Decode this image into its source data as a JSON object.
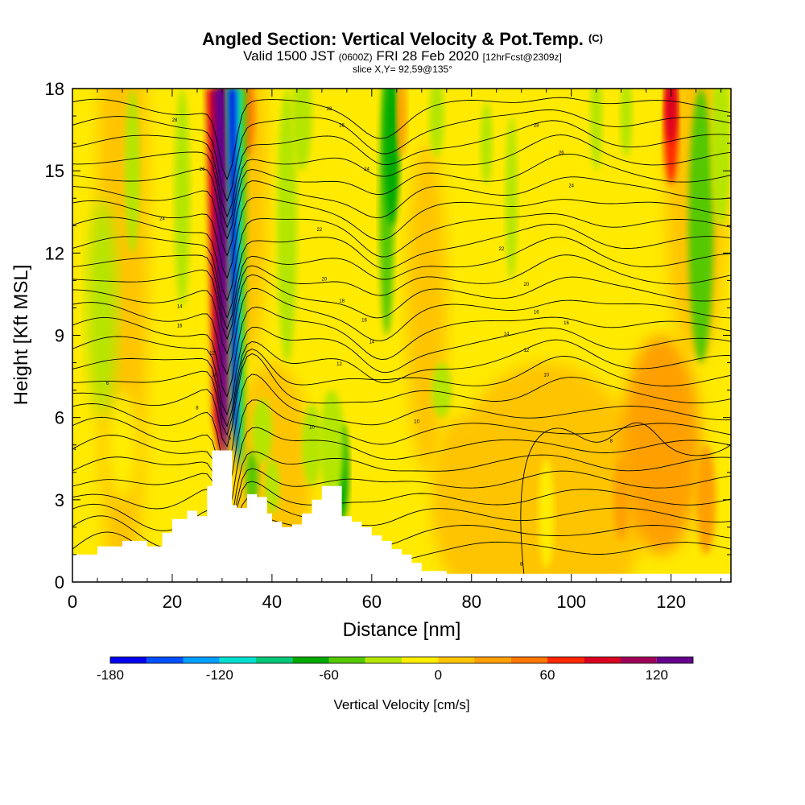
{
  "title": {
    "main": "Angled Section: Vertical Velocity & Pot.Temp.",
    "main_suffix": "(C)",
    "valid_prefix": "Valid 1500 JST",
    "valid_utc": "(0600Z)",
    "valid_date": "FRI 28 Feb 2020",
    "forecast": "[12hrFcst@2309z]",
    "slice": "slice X,Y= 92,59@135°"
  },
  "chart_data": {
    "type": "heatmap",
    "xlabel": "Distance [nm]",
    "ylabel": "Height [Kft MSL]",
    "xlim": [
      0,
      132
    ],
    "ylim": [
      0,
      18
    ],
    "x_ticks": [
      0,
      20,
      40,
      60,
      80,
      100,
      120
    ],
    "y_ticks": [
      0,
      3,
      6,
      9,
      12,
      15,
      18
    ],
    "grid": false,
    "colorbar": {
      "title": "Vertical Velocity [cm/s]",
      "range": [
        -180,
        140
      ],
      "step": 20,
      "tick_values": [
        -180,
        -120,
        -60,
        0,
        60,
        120
      ],
      "colors": [
        "#0000ee",
        "#0050ff",
        "#00a0ff",
        "#00e0d0",
        "#00c878",
        "#00aa00",
        "#55c800",
        "#b4e600",
        "#ffee00",
        "#ffc400",
        "#ffa000",
        "#ff7800",
        "#ff2800",
        "#dc0020",
        "#a0005a",
        "#64008c"
      ]
    },
    "terrain_profile": {
      "x": [
        0,
        5,
        10,
        15,
        18,
        20,
        23,
        25,
        27,
        28,
        30,
        32,
        33,
        35,
        37,
        39,
        40,
        42,
        44,
        46,
        48,
        50,
        52,
        54,
        56,
        58,
        60,
        62,
        64,
        66,
        68,
        70,
        75,
        132
      ],
      "height": [
        1.0,
        1.3,
        1.5,
        1.3,
        1.8,
        2.3,
        2.6,
        2.4,
        3.5,
        4.8,
        4.8,
        2.8,
        2.7,
        3.2,
        3.1,
        2.5,
        2.2,
        2.0,
        2.1,
        2.5,
        3.0,
        3.5,
        3.5,
        2.4,
        2.2,
        2.0,
        1.7,
        1.5,
        1.2,
        1.0,
        0.7,
        0.4,
        0.3,
        0.3
      ]
    },
    "theta_contour_labels": [
      {
        "x": 0.5,
        "y": 4.8,
        "text": "4"
      },
      {
        "x": 7,
        "y": 7.2,
        "text": "6"
      },
      {
        "x": 25,
        "y": 6.3,
        "text": "8"
      },
      {
        "x": 28.5,
        "y": 7.5,
        "text": "10"
      },
      {
        "x": 28,
        "y": 8.3,
        "text": "12"
      },
      {
        "x": 21.5,
        "y": 10.0,
        "text": "14"
      },
      {
        "x": 21.5,
        "y": 9.3,
        "text": "16"
      },
      {
        "x": 18,
        "y": 13.2,
        "text": "24"
      },
      {
        "x": 26,
        "y": 15.0,
        "text": "26"
      },
      {
        "x": 20.5,
        "y": 16.8,
        "text": "28"
      },
      {
        "x": 31.5,
        "y": 5.2,
        "text": "5"
      },
      {
        "x": 48,
        "y": 5.6,
        "text": "10"
      },
      {
        "x": 53.5,
        "y": 7.9,
        "text": "12"
      },
      {
        "x": 60,
        "y": 8.7,
        "text": "14"
      },
      {
        "x": 58.5,
        "y": 9.5,
        "text": "16"
      },
      {
        "x": 54,
        "y": 10.2,
        "text": "18"
      },
      {
        "x": 50.5,
        "y": 11.0,
        "text": "20"
      },
      {
        "x": 49.5,
        "y": 12.8,
        "text": "22"
      },
      {
        "x": 59,
        "y": 15.0,
        "text": "24"
      },
      {
        "x": 54,
        "y": 16.6,
        "text": "26"
      },
      {
        "x": 51.5,
        "y": 17.2,
        "text": "28"
      },
      {
        "x": 69,
        "y": 5.8,
        "text": "10"
      },
      {
        "x": 87,
        "y": 9.0,
        "text": "14"
      },
      {
        "x": 91,
        "y": 8.4,
        "text": "12"
      },
      {
        "x": 95,
        "y": 7.5,
        "text": "10"
      },
      {
        "x": 93,
        "y": 9.8,
        "text": "16"
      },
      {
        "x": 99,
        "y": 9.4,
        "text": "16"
      },
      {
        "x": 91,
        "y": 10.8,
        "text": "20"
      },
      {
        "x": 86,
        "y": 12.1,
        "text": "22"
      },
      {
        "x": 100,
        "y": 14.4,
        "text": "24"
      },
      {
        "x": 98,
        "y": 15.6,
        "text": "26"
      },
      {
        "x": 93,
        "y": 16.6,
        "text": "28"
      },
      {
        "x": 99,
        "y": 18.1,
        "text": "30"
      },
      {
        "x": 108,
        "y": 5.1,
        "text": "8"
      },
      {
        "x": 90,
        "y": 0.6,
        "text": "8"
      }
    ],
    "theta_contour_levels": [
      4,
      5,
      6,
      7,
      8,
      9,
      10,
      11,
      12,
      13,
      14,
      15,
      16,
      17,
      18,
      19,
      20,
      21,
      22,
      23,
      24,
      25,
      26,
      27,
      28,
      29,
      30
    ]
  }
}
